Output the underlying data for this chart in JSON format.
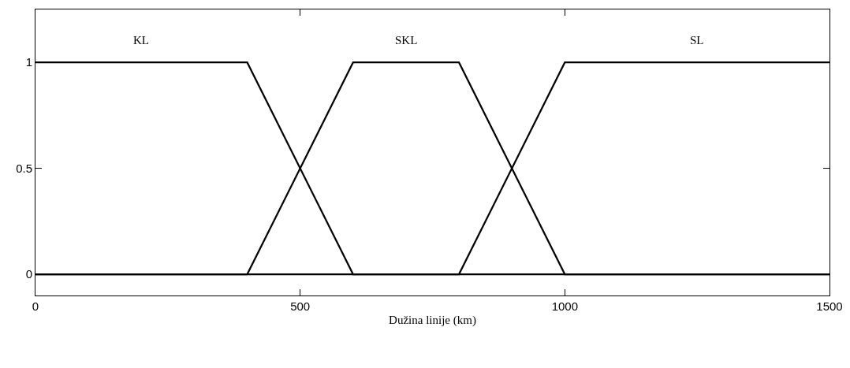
{
  "chart_data": {
    "type": "line",
    "xlabel": "Dužina linije (km)",
    "xlim": [
      0,
      1500
    ],
    "ylim": [
      -0.1,
      1.25
    ],
    "xticks": [
      0,
      500,
      1000,
      1500
    ],
    "yticks": [
      0,
      0.5,
      1
    ],
    "grid": false,
    "legend": false,
    "marker": "none",
    "line_style": "solid",
    "series": [
      {
        "name": "KL",
        "color": "#000000",
        "x": [
          0,
          400,
          600,
          1500
        ],
        "values": [
          1,
          1,
          0,
          0
        ]
      },
      {
        "name": "SKL",
        "color": "#000000",
        "x": [
          0,
          400,
          600,
          800,
          1000,
          1500
        ],
        "values": [
          0,
          0,
          1,
          1,
          0,
          0
        ]
      },
      {
        "name": "SL",
        "color": "#000000",
        "x": [
          0,
          800,
          1000,
          1500
        ],
        "values": [
          0,
          0,
          1,
          1
        ]
      }
    ]
  }
}
